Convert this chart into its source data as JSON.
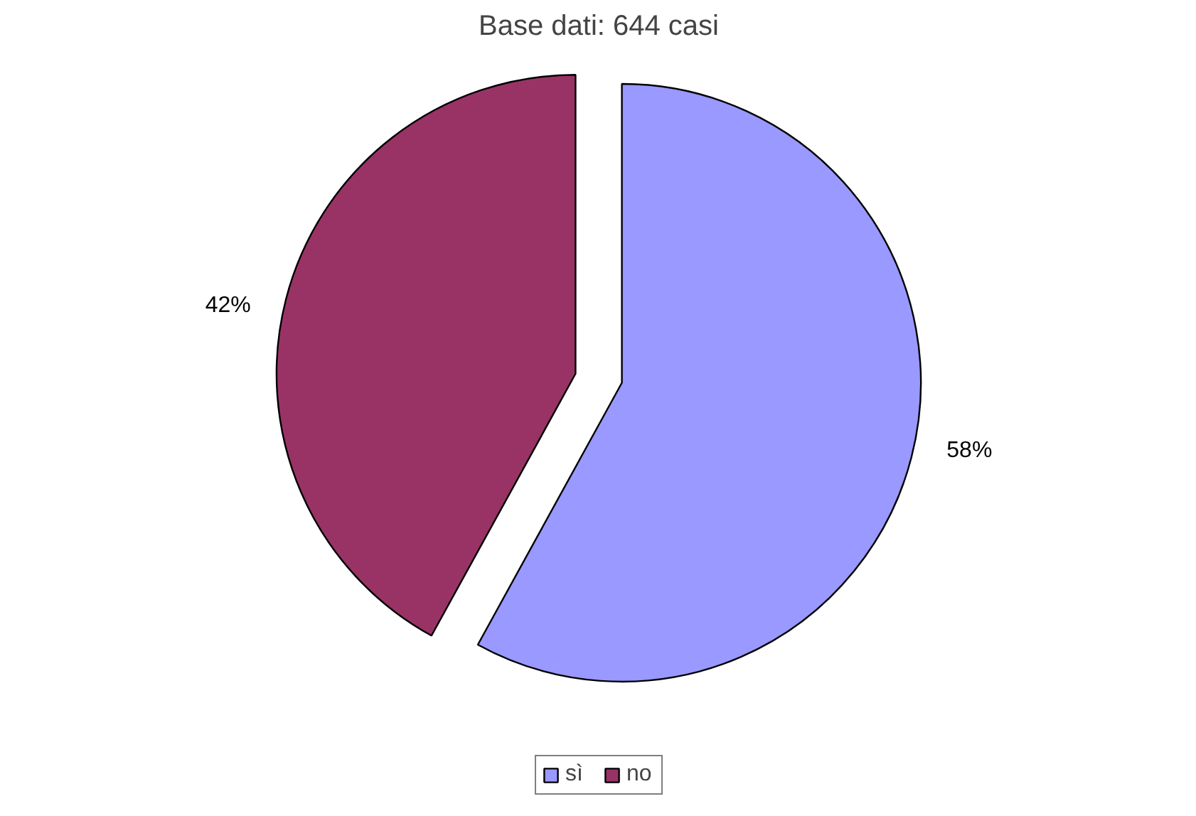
{
  "chart_data": {
    "type": "pie",
    "title": "Base dati: 644 casi",
    "categories": [
      "sì",
      "no"
    ],
    "values": [
      58,
      42
    ],
    "colors": [
      "#9999ff",
      "#993366"
    ],
    "value_labels": [
      "58%",
      "42%"
    ],
    "legend": "bottom"
  }
}
